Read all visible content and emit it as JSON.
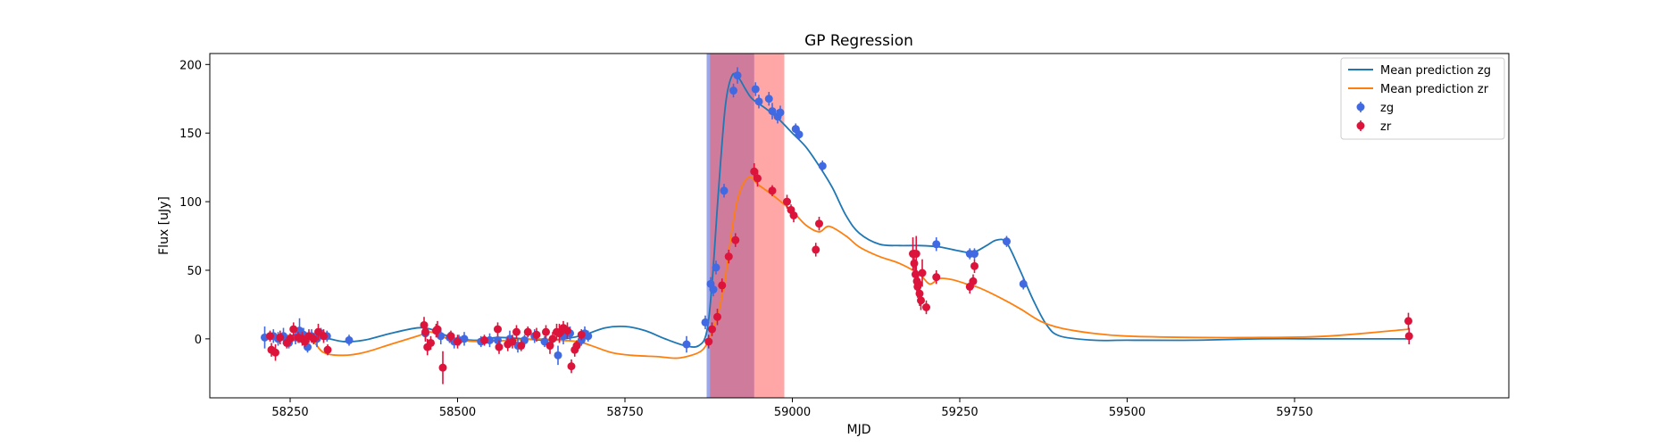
{
  "chart_data": {
    "type": "scatter",
    "title": "GP Regression",
    "xlabel": "MJD",
    "ylabel": "Flux [uJy]",
    "xlim": [
      58130,
      60070
    ],
    "ylim": [
      -43,
      208
    ],
    "xticks": [
      58250,
      58500,
      58750,
      59000,
      59250,
      59500,
      59750
    ],
    "yticks": [
      0,
      50,
      100,
      150,
      200
    ],
    "grid": false,
    "legend_position": "top-right",
    "colors": {
      "zg_line": "#1f77b4",
      "zr_line": "#ff7f0e",
      "zg_points": "#4169e1",
      "zr_points": "#dc143c",
      "band_blue": "#4b5fd6",
      "band_red": "#ff5050"
    },
    "shaded_regions": [
      {
        "x0": 58872,
        "x1": 58943,
        "color": "#4b5fd6",
        "alpha": 0.55
      },
      {
        "x0": 58877,
        "x1": 58988,
        "color": "#ff5050",
        "alpha": 0.5
      }
    ],
    "series": [
      {
        "name": "Mean prediction zg",
        "kind": "line",
        "color": "#1f77b4",
        "x": [
          58210,
          58240,
          58270,
          58300,
          58330,
          58360,
          58400,
          58440,
          58460,
          58480,
          58500,
          58530,
          58560,
          58600,
          58630,
          58660,
          58690,
          58720,
          58750,
          58780,
          58810,
          58840,
          58860,
          58872,
          58880,
          58890,
          58900,
          58910,
          58920,
          58930,
          58940,
          58960,
          58980,
          59000,
          59020,
          59040,
          59060,
          59080,
          59100,
          59130,
          59160,
          59190,
          59220,
          59250,
          59270,
          59290,
          59305,
          59320,
          59340,
          59360,
          59380,
          59400,
          59450,
          59500,
          59600,
          59700,
          59800,
          59920
        ],
        "y": [
          0,
          2,
          3,
          1,
          -2,
          -1,
          4,
          8,
          7,
          3,
          0,
          -1,
          1,
          0,
          -1,
          0,
          3,
          8,
          9,
          6,
          0,
          -5,
          -5,
          5,
          40,
          110,
          170,
          192,
          190,
          182,
          175,
          168,
          160,
          150,
          140,
          126,
          110,
          90,
          77,
          69,
          68,
          68,
          67,
          64,
          63,
          68,
          72,
          70,
          50,
          28,
          10,
          2,
          -1,
          -1,
          -1,
          0,
          0,
          0
        ]
      },
      {
        "name": "Mean prediction zr",
        "kind": "line",
        "color": "#ff7f0e",
        "x": [
          58210,
          58250,
          58280,
          58300,
          58330,
          58360,
          58400,
          58440,
          58460,
          58480,
          58500,
          58540,
          58580,
          58620,
          58650,
          58680,
          58700,
          58730,
          58760,
          58800,
          58830,
          58860,
          58872,
          58880,
          58890,
          58900,
          58910,
          58920,
          58935,
          58950,
          58970,
          59000,
          59020,
          59040,
          59055,
          59080,
          59100,
          59130,
          59160,
          59190,
          59205,
          59220,
          59240,
          59260,
          59280,
          59310,
          59340,
          59370,
          59400,
          59450,
          59500,
          59600,
          59700,
          59800,
          59920
        ],
        "y": [
          0,
          2,
          0,
          -10,
          -12,
          -10,
          -4,
          2,
          5,
          1,
          -1,
          -2,
          -1,
          0,
          -1,
          -2,
          -5,
          -10,
          -12,
          -13,
          -14,
          -10,
          -4,
          5,
          20,
          45,
          80,
          105,
          118,
          112,
          105,
          93,
          83,
          78,
          82,
          75,
          67,
          60,
          55,
          47,
          40,
          44,
          43,
          40,
          37,
          30,
          22,
          13,
          8,
          4,
          2,
          1,
          1,
          2,
          7
        ]
      },
      {
        "name": "zg",
        "kind": "errorbar",
        "color": "#4169e1",
        "x": [
          58212,
          58225,
          58232,
          58240,
          58248,
          58258,
          58264,
          58270,
          58276,
          58282,
          58290,
          58296,
          58305,
          58338,
          58452,
          58475,
          58488,
          58495,
          58502,
          58510,
          58535,
          58548,
          58560,
          58578,
          58590,
          58600,
          58615,
          58630,
          58650,
          58658,
          58668,
          58685,
          58690,
          58695,
          58842,
          58870,
          58878,
          58882,
          58886,
          58898,
          58912,
          58918,
          58945,
          58950,
          58965,
          58970,
          58978,
          58982,
          59005,
          59010,
          59045,
          59215,
          59265,
          59272,
          59320,
          59345
        ],
        "y": [
          1,
          2,
          0,
          2,
          -3,
          1,
          6,
          3,
          -6,
          2,
          0,
          4,
          2,
          -1,
          4,
          2,
          1,
          -2,
          -1,
          0,
          -2,
          -1,
          -1,
          0,
          -5,
          -1,
          2,
          -2,
          -12,
          2,
          4,
          -1,
          4,
          2,
          -4,
          12,
          40,
          36,
          52,
          108,
          181,
          192,
          182,
          173,
          175,
          166,
          162,
          165,
          153,
          149,
          126,
          69,
          62,
          62,
          71,
          40
        ],
        "err": [
          8,
          5,
          5,
          6,
          4,
          5,
          9,
          5,
          4,
          5,
          6,
          4,
          4,
          4,
          5,
          6,
          4,
          5,
          4,
          5,
          4,
          5,
          4,
          6,
          5,
          4,
          5,
          4,
          7,
          6,
          5,
          4,
          5,
          4,
          6,
          5,
          5,
          5,
          5,
          5,
          5,
          6,
          5,
          5,
          5,
          6,
          5,
          5,
          4,
          4,
          4,
          5,
          4,
          4,
          4,
          4
        ]
      },
      {
        "name": "zr",
        "kind": "errorbar",
        "color": "#dc143c",
        "x": [
          58220,
          58222,
          58228,
          58235,
          58245,
          58250,
          58255,
          58262,
          58268,
          58272,
          58278,
          58285,
          58292,
          58300,
          58306,
          58450,
          58452,
          58455,
          58460,
          58468,
          58470,
          58478,
          58490,
          58500,
          58540,
          58560,
          58562,
          58575,
          58582,
          58588,
          58595,
          58605,
          58618,
          58632,
          58638,
          58642,
          58648,
          58652,
          58658,
          58664,
          58670,
          58675,
          58678,
          58685,
          58875,
          58880,
          58888,
          58895,
          58905,
          58915,
          58943,
          58948,
          58970,
          58992,
          58998,
          59002,
          59040,
          59035,
          59180,
          59182,
          59184,
          59186,
          59188,
          59190,
          59192,
          59194,
          59185,
          59187,
          59200,
          59215,
          59265,
          59270,
          59272,
          59920,
          59921
        ],
        "y": [
          2,
          -8,
          -10,
          1,
          -3,
          0,
          7,
          1,
          0,
          -2,
          2,
          0,
          5,
          2,
          -8,
          10,
          5,
          -6,
          -3,
          6,
          7,
          -21,
          2,
          -2,
          -1,
          7,
          -6,
          -4,
          -2,
          5,
          -5,
          5,
          3,
          5,
          -5,
          0,
          5,
          4,
          8,
          6,
          -20,
          -8,
          -5,
          3,
          -2,
          7,
          16,
          39,
          60,
          72,
          122,
          117,
          108,
          100,
          94,
          90,
          84,
          65,
          62,
          55,
          47,
          42,
          40,
          33,
          28,
          48,
          62,
          38,
          23,
          45,
          38,
          42,
          53,
          13,
          2
        ],
        "err": [
          4,
          5,
          6,
          5,
          4,
          4,
          5,
          4,
          5,
          4,
          5,
          4,
          6,
          5,
          4,
          6,
          7,
          6,
          5,
          5,
          6,
          12,
          4,
          5,
          4,
          5,
          5,
          5,
          5,
          5,
          4,
          4,
          5,
          5,
          6,
          5,
          6,
          7,
          5,
          6,
          5,
          5,
          4,
          4,
          5,
          5,
          6,
          5,
          5,
          5,
          6,
          6,
          4,
          5,
          4,
          5,
          5,
          5,
          12,
          10,
          9,
          8,
          8,
          9,
          7,
          10,
          13,
          8,
          5,
          5,
          5,
          5,
          5,
          6,
          6
        ]
      }
    ]
  }
}
